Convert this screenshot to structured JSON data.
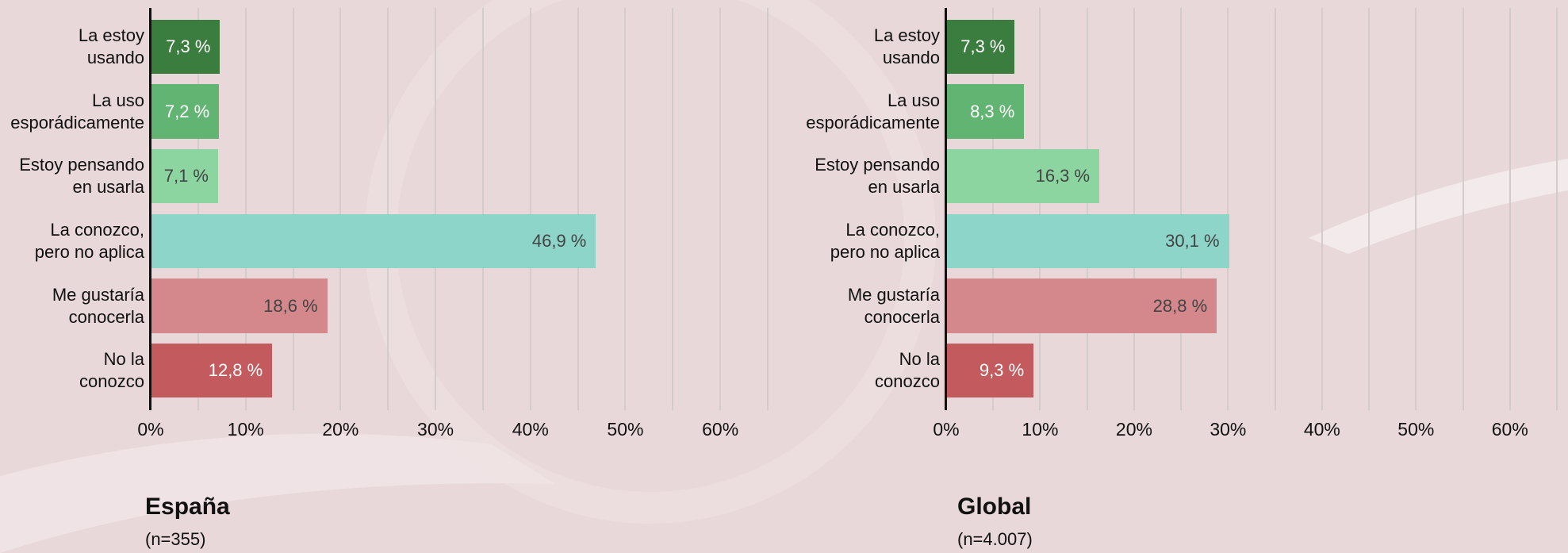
{
  "chart_data": [
    {
      "type": "barh",
      "title": "España",
      "subtitle": "(n=355)",
      "categories": [
        "La estoy\nusando",
        "La uso\nesporádicamente",
        "Estoy pensando\nen usarla",
        "La conozco,\npero no aplica",
        "Me gustaría\nconocerla",
        "No la\nconozco"
      ],
      "values": [
        7.3,
        7.2,
        7.1,
        46.9,
        18.6,
        12.8
      ],
      "value_labels": [
        "7,3 %",
        "7,2 %",
        "7,1 %",
        "46,9 %",
        "18,6 %",
        "12,8 %"
      ],
      "colors": [
        "#3b7c3f",
        "#62b473",
        "#8dd5a0",
        "#8dd5c9",
        "#d4888b",
        "#c35a5d"
      ],
      "label_colors": [
        "#ffffff",
        "#ffffff",
        "#444444",
        "#444444",
        "#444444",
        "#ffffff"
      ],
      "xlim": [
        0,
        65
      ],
      "xticks": [
        {
          "value": 0,
          "label": "0%"
        },
        {
          "value": 10,
          "label": "10%"
        },
        {
          "value": 20,
          "label": "20%"
        },
        {
          "value": 30,
          "label": "30%"
        },
        {
          "value": 40,
          "label": "40%"
        },
        {
          "value": 50,
          "label": "50%"
        },
        {
          "value": 60,
          "label": "60%"
        }
      ],
      "minor_xticks": [
        5,
        15,
        25,
        35,
        45,
        55,
        65
      ],
      "grid": true
    },
    {
      "type": "barh",
      "title": "Global",
      "subtitle": "(n=4.007)",
      "categories": [
        "La estoy\nusando",
        "La uso\nesporádicamente",
        "Estoy pensando\nen usarla",
        "La conozco,\npero no aplica",
        "Me gustaría\nconocerla",
        "No la\nconozco"
      ],
      "values": [
        7.3,
        8.3,
        16.3,
        30.1,
        28.8,
        9.3
      ],
      "value_labels": [
        "7,3 %",
        "8,3 %",
        "16,3 %",
        "30,1 %",
        "28,8 %",
        "9,3 %"
      ],
      "colors": [
        "#3b7c3f",
        "#62b473",
        "#8dd5a0",
        "#8dd5c9",
        "#d4888b",
        "#c35a5d"
      ],
      "label_colors": [
        "#ffffff",
        "#ffffff",
        "#444444",
        "#444444",
        "#444444",
        "#ffffff"
      ],
      "xlim": [
        0,
        65
      ],
      "xticks": [
        {
          "value": 0,
          "label": "0%"
        },
        {
          "value": 10,
          "label": "10%"
        },
        {
          "value": 20,
          "label": "20%"
        },
        {
          "value": 30,
          "label": "30%"
        },
        {
          "value": 40,
          "label": "40%"
        },
        {
          "value": 50,
          "label": "50%"
        },
        {
          "value": 60,
          "label": "60%"
        }
      ],
      "minor_xticks": [
        5,
        15,
        25,
        35,
        45,
        55,
        65
      ],
      "grid": true
    }
  ]
}
